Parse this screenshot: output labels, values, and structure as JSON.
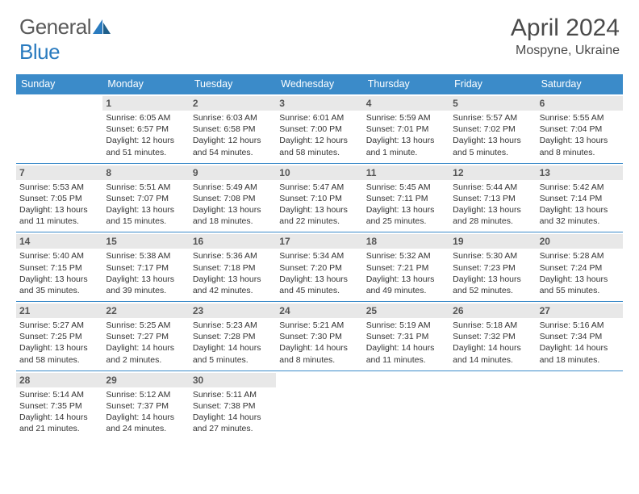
{
  "logo": {
    "textA": "General",
    "textB": "Blue"
  },
  "title": "April 2024",
  "location": "Mospyne, Ukraine",
  "colors": {
    "header_bg": "#3b8bc9",
    "daynum_bg": "#e8e8e8",
    "week_border": "#3b8bc9",
    "logo_gray": "#5a5a5a",
    "logo_blue": "#2a7bbf",
    "text": "#333333",
    "bg": "#ffffff"
  },
  "weekdays": [
    "Sunday",
    "Monday",
    "Tuesday",
    "Wednesday",
    "Thursday",
    "Friday",
    "Saturday"
  ],
  "weeks": [
    [
      {
        "n": "",
        "l1": "",
        "l2": "",
        "l3": "",
        "l4": ""
      },
      {
        "n": "1",
        "l1": "Sunrise: 6:05 AM",
        "l2": "Sunset: 6:57 PM",
        "l3": "Daylight: 12 hours",
        "l4": "and 51 minutes."
      },
      {
        "n": "2",
        "l1": "Sunrise: 6:03 AM",
        "l2": "Sunset: 6:58 PM",
        "l3": "Daylight: 12 hours",
        "l4": "and 54 minutes."
      },
      {
        "n": "3",
        "l1": "Sunrise: 6:01 AM",
        "l2": "Sunset: 7:00 PM",
        "l3": "Daylight: 12 hours",
        "l4": "and 58 minutes."
      },
      {
        "n": "4",
        "l1": "Sunrise: 5:59 AM",
        "l2": "Sunset: 7:01 PM",
        "l3": "Daylight: 13 hours",
        "l4": "and 1 minute."
      },
      {
        "n": "5",
        "l1": "Sunrise: 5:57 AM",
        "l2": "Sunset: 7:02 PM",
        "l3": "Daylight: 13 hours",
        "l4": "and 5 minutes."
      },
      {
        "n": "6",
        "l1": "Sunrise: 5:55 AM",
        "l2": "Sunset: 7:04 PM",
        "l3": "Daylight: 13 hours",
        "l4": "and 8 minutes."
      }
    ],
    [
      {
        "n": "7",
        "l1": "Sunrise: 5:53 AM",
        "l2": "Sunset: 7:05 PM",
        "l3": "Daylight: 13 hours",
        "l4": "and 11 minutes."
      },
      {
        "n": "8",
        "l1": "Sunrise: 5:51 AM",
        "l2": "Sunset: 7:07 PM",
        "l3": "Daylight: 13 hours",
        "l4": "and 15 minutes."
      },
      {
        "n": "9",
        "l1": "Sunrise: 5:49 AM",
        "l2": "Sunset: 7:08 PM",
        "l3": "Daylight: 13 hours",
        "l4": "and 18 minutes."
      },
      {
        "n": "10",
        "l1": "Sunrise: 5:47 AM",
        "l2": "Sunset: 7:10 PM",
        "l3": "Daylight: 13 hours",
        "l4": "and 22 minutes."
      },
      {
        "n": "11",
        "l1": "Sunrise: 5:45 AM",
        "l2": "Sunset: 7:11 PM",
        "l3": "Daylight: 13 hours",
        "l4": "and 25 minutes."
      },
      {
        "n": "12",
        "l1": "Sunrise: 5:44 AM",
        "l2": "Sunset: 7:13 PM",
        "l3": "Daylight: 13 hours",
        "l4": "and 28 minutes."
      },
      {
        "n": "13",
        "l1": "Sunrise: 5:42 AM",
        "l2": "Sunset: 7:14 PM",
        "l3": "Daylight: 13 hours",
        "l4": "and 32 minutes."
      }
    ],
    [
      {
        "n": "14",
        "l1": "Sunrise: 5:40 AM",
        "l2": "Sunset: 7:15 PM",
        "l3": "Daylight: 13 hours",
        "l4": "and 35 minutes."
      },
      {
        "n": "15",
        "l1": "Sunrise: 5:38 AM",
        "l2": "Sunset: 7:17 PM",
        "l3": "Daylight: 13 hours",
        "l4": "and 39 minutes."
      },
      {
        "n": "16",
        "l1": "Sunrise: 5:36 AM",
        "l2": "Sunset: 7:18 PM",
        "l3": "Daylight: 13 hours",
        "l4": "and 42 minutes."
      },
      {
        "n": "17",
        "l1": "Sunrise: 5:34 AM",
        "l2": "Sunset: 7:20 PM",
        "l3": "Daylight: 13 hours",
        "l4": "and 45 minutes."
      },
      {
        "n": "18",
        "l1": "Sunrise: 5:32 AM",
        "l2": "Sunset: 7:21 PM",
        "l3": "Daylight: 13 hours",
        "l4": "and 49 minutes."
      },
      {
        "n": "19",
        "l1": "Sunrise: 5:30 AM",
        "l2": "Sunset: 7:23 PM",
        "l3": "Daylight: 13 hours",
        "l4": "and 52 minutes."
      },
      {
        "n": "20",
        "l1": "Sunrise: 5:28 AM",
        "l2": "Sunset: 7:24 PM",
        "l3": "Daylight: 13 hours",
        "l4": "and 55 minutes."
      }
    ],
    [
      {
        "n": "21",
        "l1": "Sunrise: 5:27 AM",
        "l2": "Sunset: 7:25 PM",
        "l3": "Daylight: 13 hours",
        "l4": "and 58 minutes."
      },
      {
        "n": "22",
        "l1": "Sunrise: 5:25 AM",
        "l2": "Sunset: 7:27 PM",
        "l3": "Daylight: 14 hours",
        "l4": "and 2 minutes."
      },
      {
        "n": "23",
        "l1": "Sunrise: 5:23 AM",
        "l2": "Sunset: 7:28 PM",
        "l3": "Daylight: 14 hours",
        "l4": "and 5 minutes."
      },
      {
        "n": "24",
        "l1": "Sunrise: 5:21 AM",
        "l2": "Sunset: 7:30 PM",
        "l3": "Daylight: 14 hours",
        "l4": "and 8 minutes."
      },
      {
        "n": "25",
        "l1": "Sunrise: 5:19 AM",
        "l2": "Sunset: 7:31 PM",
        "l3": "Daylight: 14 hours",
        "l4": "and 11 minutes."
      },
      {
        "n": "26",
        "l1": "Sunrise: 5:18 AM",
        "l2": "Sunset: 7:32 PM",
        "l3": "Daylight: 14 hours",
        "l4": "and 14 minutes."
      },
      {
        "n": "27",
        "l1": "Sunrise: 5:16 AM",
        "l2": "Sunset: 7:34 PM",
        "l3": "Daylight: 14 hours",
        "l4": "and 18 minutes."
      }
    ],
    [
      {
        "n": "28",
        "l1": "Sunrise: 5:14 AM",
        "l2": "Sunset: 7:35 PM",
        "l3": "Daylight: 14 hours",
        "l4": "and 21 minutes."
      },
      {
        "n": "29",
        "l1": "Sunrise: 5:12 AM",
        "l2": "Sunset: 7:37 PM",
        "l3": "Daylight: 14 hours",
        "l4": "and 24 minutes."
      },
      {
        "n": "30",
        "l1": "Sunrise: 5:11 AM",
        "l2": "Sunset: 7:38 PM",
        "l3": "Daylight: 14 hours",
        "l4": "and 27 minutes."
      },
      {
        "n": "",
        "l1": "",
        "l2": "",
        "l3": "",
        "l4": ""
      },
      {
        "n": "",
        "l1": "",
        "l2": "",
        "l3": "",
        "l4": ""
      },
      {
        "n": "",
        "l1": "",
        "l2": "",
        "l3": "",
        "l4": ""
      },
      {
        "n": "",
        "l1": "",
        "l2": "",
        "l3": "",
        "l4": ""
      }
    ]
  ]
}
